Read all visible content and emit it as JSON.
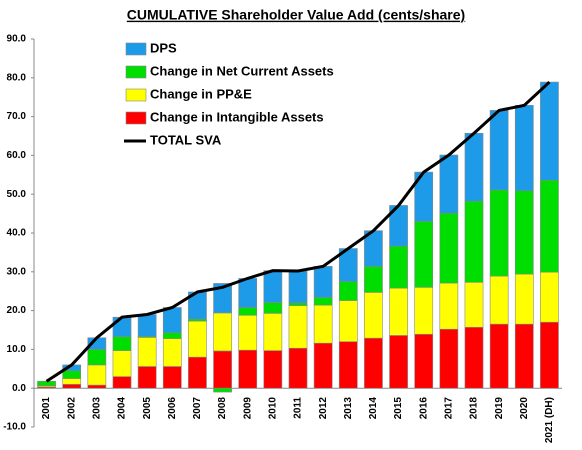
{
  "chart_data": {
    "type": "stacked-bar",
    "title": "CUMULATIVE Shareholder Value Add (cents/share)",
    "categories": [
      "2001",
      "2002",
      "2003",
      "2004",
      "2005",
      "2006",
      "2007",
      "2008",
      "2009",
      "2010",
      "2011",
      "2012",
      "2013",
      "2014",
      "2015",
      "2016",
      "2017",
      "2018",
      "2019",
      "2020",
      "2021 (DH)"
    ],
    "series": [
      {
        "name": "Change in Intangible Assets",
        "color": "#ff0000",
        "values": [
          0.3,
          1,
          0.8,
          3,
          5.6,
          5.6,
          8,
          9.6,
          9.8,
          9.7,
          10.3,
          11.6,
          12,
          12.9,
          13.6,
          13.9,
          15.2,
          15.7,
          16.5,
          16.5,
          17
        ]
      },
      {
        "name": "Change in PP&E",
        "color": "#ffff00",
        "values": [
          0.3,
          1.5,
          5.2,
          6.7,
          7.5,
          7.2,
          9.3,
          9.8,
          9,
          9.6,
          11,
          9.8,
          10.6,
          11.8,
          12.2,
          12.1,
          11.9,
          11.6,
          12.4,
          12.9,
          12.9
        ]
      },
      {
        "name": "Change in Net Current Assets",
        "color": "#00dd00",
        "values": [
          1.2,
          2,
          4,
          3.6,
          0.3,
          1.5,
          0.5,
          -1,
          2,
          2.8,
          0.7,
          2,
          4.9,
          6.7,
          10.8,
          17,
          18,
          20.9,
          22.2,
          21.5,
          23.7
        ]
      },
      {
        "name": "DPS",
        "color": "#1e9be8",
        "values": [
          0,
          1.5,
          3,
          5,
          5.6,
          6.5,
          7,
          7.6,
          7.5,
          8.2,
          8.2,
          8,
          8.5,
          9.2,
          10.5,
          12.7,
          15,
          17.5,
          20.5,
          22,
          25.3
        ]
      }
    ],
    "line": {
      "name": "TOTAL SVA",
      "color": "#000000",
      "values": [
        1.8,
        6,
        13,
        18.3,
        19,
        20.8,
        24.8,
        26,
        28.3,
        30.3,
        30.2,
        31.4,
        36,
        40.6,
        47.1,
        55.7,
        60.1,
        65.7,
        71.6,
        72.9,
        78.9
      ]
    },
    "ylim": [
      -10,
      90
    ],
    "yticks": [
      {
        "value": -10,
        "label": "-10.0"
      },
      {
        "value": 0,
        "label": "0.0"
      },
      {
        "value": 10,
        "label": "10.0"
      },
      {
        "value": 20,
        "label": "20.0"
      },
      {
        "value": 30,
        "label": "30.0"
      },
      {
        "value": 40,
        "label": "40.0"
      },
      {
        "value": 50,
        "label": "50.0"
      },
      {
        "value": 60,
        "label": "60.0"
      },
      {
        "value": 70,
        "label": "70.0"
      },
      {
        "value": 80,
        "label": "80.0"
      },
      {
        "value": 90,
        "label": "90.0"
      }
    ],
    "grid": false
  }
}
